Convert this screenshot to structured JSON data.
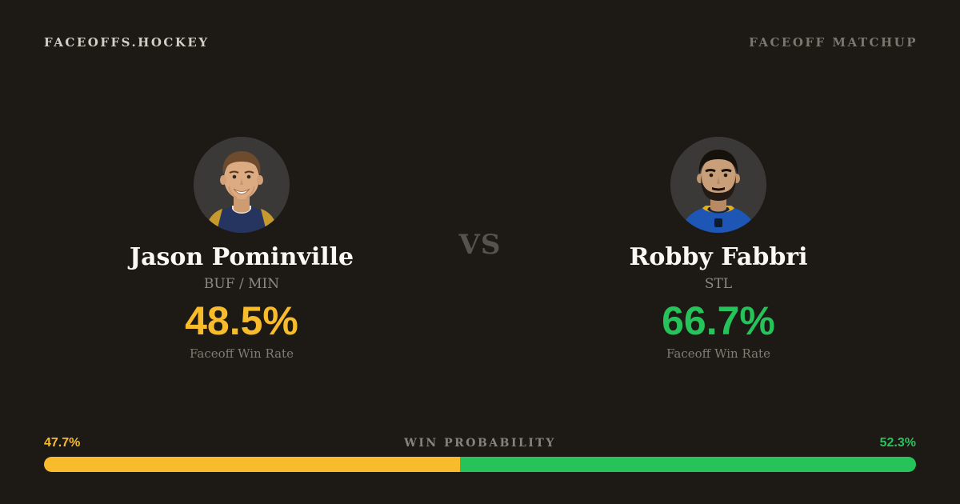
{
  "header": {
    "brand": "FACEOFFS.HOCKEY",
    "matchup_label": "FACEOFF MATCHUP"
  },
  "matchup": {
    "vs_label": "VS",
    "players": [
      {
        "name": "Jason Pominville",
        "teams": "BUF / MIN",
        "win_rate": "48.5%",
        "stat_label": "Faceoff Win Rate",
        "accent_color": "#f8bb2b",
        "avatar": "headshot-photo"
      },
      {
        "name": "Robby Fabbri",
        "teams": "STL",
        "win_rate": "66.7%",
        "stat_label": "Faceoff Win Rate",
        "accent_color": "#26c35b",
        "avatar": "headshot-photo"
      }
    ]
  },
  "probability": {
    "title": "WIN PROBABILITY",
    "left_value": "47.7%",
    "right_value": "52.3%",
    "left_pct": 47.7,
    "right_pct": 52.3,
    "left_color": "#f8bb2b",
    "right_color": "#26c35b"
  },
  "colors": {
    "background": "#1d1915",
    "primary_text": "#fbf8f3",
    "secondary_text": "#8e8881",
    "brand_text": "#d4cec6"
  }
}
